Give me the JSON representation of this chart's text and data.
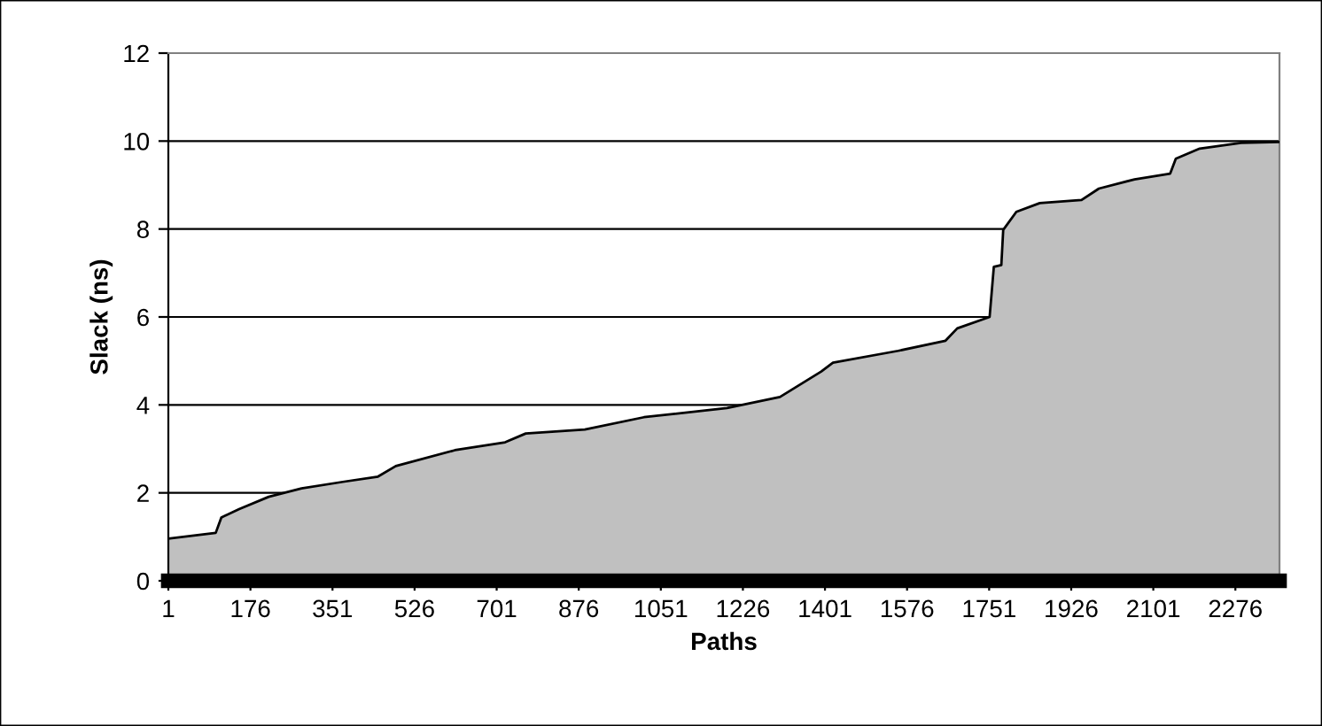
{
  "chart_data": {
    "type": "area",
    "xlabel": "Paths",
    "ylabel": "Slack (ns)",
    "xlim": [
      1,
      2370
    ],
    "xticks": [
      1,
      176,
      351,
      526,
      701,
      876,
      1051,
      1226,
      1401,
      1576,
      1751,
      1926,
      2101,
      2276
    ],
    "ylim": [
      0,
      12
    ],
    "yticks": [
      0,
      2,
      4,
      6,
      8,
      10,
      12
    ],
    "grid": "y",
    "legend": false,
    "series": [
      {
        "color": "#c0c0c0",
        "x": [
          1,
          102,
          114,
          152,
          215,
          285,
          373,
          448,
          486,
          612,
          719,
          763,
          889,
          1015,
          1192,
          1305,
          1393,
          1418,
          1557,
          1658,
          1683,
          1752,
          1761,
          1777,
          1781,
          1809,
          1859,
          1948,
          1985,
          2061,
          2137,
          2149,
          2200,
          2288,
          2370
        ],
        "values": [
          0.96,
          1.09,
          1.44,
          1.63,
          1.91,
          2.1,
          2.25,
          2.37,
          2.61,
          2.97,
          3.15,
          3.35,
          3.44,
          3.72,
          3.93,
          4.18,
          4.76,
          4.96,
          5.23,
          5.46,
          5.74,
          6.0,
          7.14,
          7.18,
          7.98,
          8.39,
          8.59,
          8.66,
          8.92,
          9.13,
          9.26,
          9.6,
          9.83,
          9.96,
          9.98
        ]
      }
    ]
  }
}
